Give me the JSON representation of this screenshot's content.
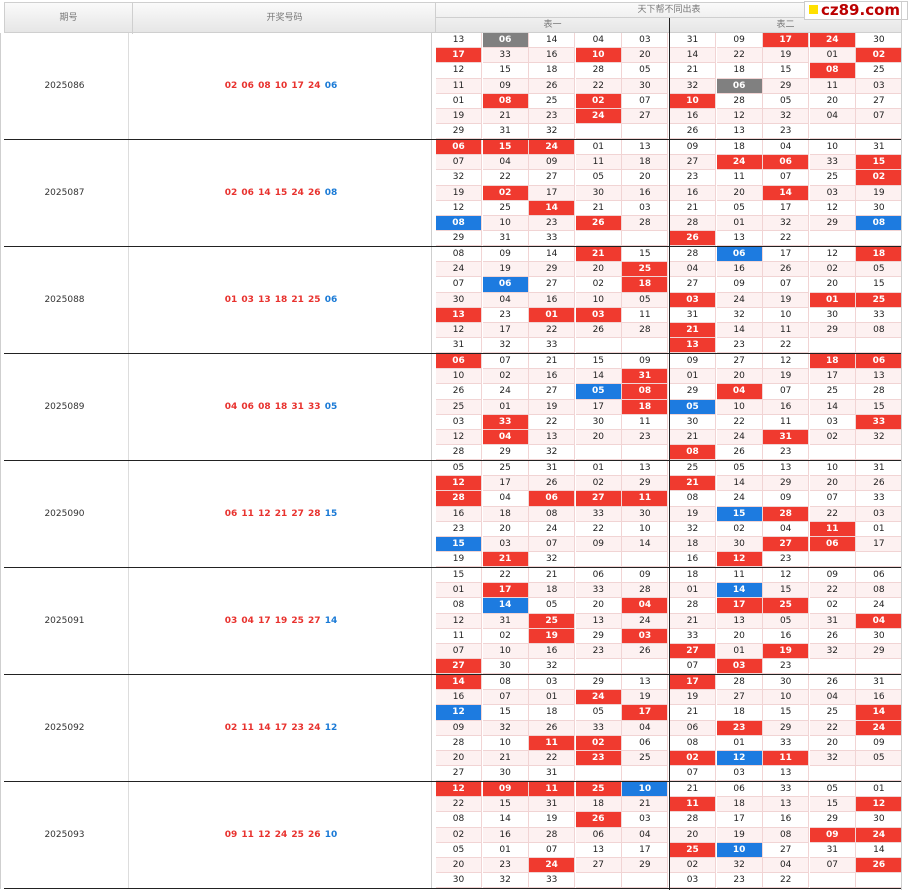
{
  "header": {
    "period_label": "期号",
    "draw_label": "开奖号码",
    "main_title": "天下帮不同出表",
    "table1_label": "表一",
    "table2_label": "表二",
    "logo_text": "cz89.com"
  },
  "colors": {
    "red": "#f03a2f",
    "blue": "#1d7be0",
    "gray": "#808080"
  },
  "periods": [
    {
      "id": "2025086",
      "draw_red": "02 06 08 10 17 24",
      "draw_blue": "06",
      "t1": [
        [
          "13",
          "06g",
          "14",
          "04",
          "03"
        ],
        [
          "17r",
          "33",
          "16",
          "10r",
          "20"
        ],
        [
          "12",
          "15",
          "18",
          "28",
          "05"
        ],
        [
          "11",
          "09",
          "26",
          "22",
          "30"
        ],
        [
          "01",
          "08r",
          "25",
          "02r",
          "07"
        ],
        [
          "19",
          "21",
          "23",
          "24r",
          "27"
        ],
        [
          "29",
          "31",
          "32",
          "",
          ""
        ]
      ],
      "t2": [
        [
          "31",
          "09",
          "17r",
          "24r",
          "30"
        ],
        [
          "14",
          "22",
          "19",
          "01",
          "02r"
        ],
        [
          "21",
          "18",
          "15",
          "08r",
          "25"
        ],
        [
          "32",
          "06g",
          "29",
          "11",
          "03"
        ],
        [
          "10r",
          "28",
          "05",
          "20",
          "27"
        ],
        [
          "16",
          "12",
          "32",
          "04",
          "07"
        ],
        [
          "26",
          "13",
          "23",
          "",
          ""
        ]
      ]
    },
    {
      "id": "2025087",
      "draw_red": "02 06 14 15 24 26",
      "draw_blue": "08",
      "t1": [
        [
          "06r",
          "15r",
          "24r",
          "01",
          "13"
        ],
        [
          "07",
          "04",
          "09",
          "11",
          "18"
        ],
        [
          "32",
          "22",
          "27",
          "05",
          "20"
        ],
        [
          "19",
          "02r",
          "17",
          "30",
          "16"
        ],
        [
          "12",
          "25",
          "14r",
          "21",
          "03"
        ],
        [
          "08b",
          "10",
          "23",
          "26r",
          "28"
        ],
        [
          "29",
          "31",
          "33",
          "",
          ""
        ]
      ],
      "t2": [
        [
          "09",
          "18",
          "04",
          "10",
          "31"
        ],
        [
          "27",
          "24r",
          "06r",
          "33",
          "15r"
        ],
        [
          "23",
          "11",
          "07",
          "25",
          "02r"
        ],
        [
          "16",
          "20",
          "14r",
          "03",
          "19"
        ],
        [
          "21",
          "05",
          "17",
          "12",
          "30"
        ],
        [
          "28",
          "01",
          "32",
          "29",
          "08b"
        ],
        [
          "26r",
          "13",
          "22",
          "",
          ""
        ]
      ]
    },
    {
      "id": "2025088",
      "draw_red": "01 03 13 18 21 25",
      "draw_blue": "06",
      "t1": [
        [
          "08",
          "09",
          "14",
          "21r",
          "15"
        ],
        [
          "24",
          "19",
          "29",
          "20",
          "25r"
        ],
        [
          "07",
          "06b",
          "27",
          "02",
          "18r"
        ],
        [
          "30",
          "04",
          "16",
          "10",
          "05"
        ],
        [
          "13r",
          "23",
          "01r",
          "03r",
          "11"
        ],
        [
          "12",
          "17",
          "22",
          "26",
          "28"
        ],
        [
          "31",
          "32",
          "33",
          "",
          ""
        ]
      ],
      "t2": [
        [
          "28",
          "06b",
          "17",
          "12",
          "18r"
        ],
        [
          "04",
          "16",
          "26",
          "02",
          "05"
        ],
        [
          "27",
          "09",
          "07",
          "20",
          "15"
        ],
        [
          "03r",
          "24",
          "19",
          "01r",
          "25r"
        ],
        [
          "31",
          "32",
          "10",
          "30",
          "33"
        ],
        [
          "21r",
          "14",
          "11",
          "29",
          "08"
        ],
        [
          "13r",
          "23",
          "22",
          "",
          ""
        ]
      ]
    },
    {
      "id": "2025089",
      "draw_red": "04 06 08 18 31 33",
      "draw_blue": "05",
      "t1": [
        [
          "06r",
          "07",
          "21",
          "15",
          "09"
        ],
        [
          "10",
          "02",
          "16",
          "14",
          "31r"
        ],
        [
          "26",
          "24",
          "27",
          "05b",
          "08r"
        ],
        [
          "25",
          "01",
          "19",
          "17",
          "18r"
        ],
        [
          "03",
          "33r",
          "22",
          "30",
          "11"
        ],
        [
          "12",
          "04r",
          "13",
          "20",
          "23"
        ],
        [
          "28",
          "29",
          "32",
          "",
          ""
        ]
      ],
      "t2": [
        [
          "09",
          "27",
          "12",
          "18r",
          "06r"
        ],
        [
          "01",
          "20",
          "19",
          "17",
          "13"
        ],
        [
          "29",
          "04r",
          "07",
          "25",
          "28"
        ],
        [
          "05b",
          "10",
          "16",
          "14",
          "15"
        ],
        [
          "30",
          "22",
          "11",
          "03",
          "33r"
        ],
        [
          "21",
          "24",
          "31r",
          "02",
          "32"
        ],
        [
          "08r",
          "26",
          "23",
          "",
          ""
        ]
      ]
    },
    {
      "id": "2025090",
      "draw_red": "06 11 12 21 27 28",
      "draw_blue": "15",
      "t1": [
        [
          "05",
          "25",
          "31",
          "01",
          "13"
        ],
        [
          "12r",
          "17",
          "26",
          "02",
          "29"
        ],
        [
          "28r",
          "04",
          "06r",
          "27r",
          "11r"
        ],
        [
          "16",
          "18",
          "08",
          "33",
          "30"
        ],
        [
          "23",
          "20",
          "24",
          "22",
          "10"
        ],
        [
          "15b",
          "03",
          "07",
          "09",
          "14"
        ],
        [
          "19",
          "21r",
          "32",
          "",
          ""
        ]
      ],
      "t2": [
        [
          "25",
          "05",
          "13",
          "10",
          "31"
        ],
        [
          "21r",
          "14",
          "29",
          "20",
          "26"
        ],
        [
          "08",
          "24",
          "09",
          "07",
          "33"
        ],
        [
          "19",
          "15b",
          "28r",
          "22",
          "03"
        ],
        [
          "32",
          "02",
          "04",
          "11r",
          "01"
        ],
        [
          "18",
          "30",
          "27r",
          "06r",
          "17"
        ],
        [
          "16",
          "12r",
          "23",
          "",
          ""
        ]
      ]
    },
    {
      "id": "2025091",
      "draw_red": "03 04 17 19 25 27",
      "draw_blue": "14",
      "t1": [
        [
          "15",
          "22",
          "21",
          "06",
          "09"
        ],
        [
          "01",
          "17r",
          "18",
          "33",
          "28"
        ],
        [
          "08",
          "14b",
          "05",
          "20",
          "04r"
        ],
        [
          "12",
          "31",
          "25r",
          "13",
          "24"
        ],
        [
          "11",
          "02",
          "19r",
          "29",
          "03r"
        ],
        [
          "07",
          "10",
          "16",
          "23",
          "26"
        ],
        [
          "27r",
          "30",
          "32",
          "",
          ""
        ]
      ],
      "t2": [
        [
          "18",
          "11",
          "12",
          "09",
          "06"
        ],
        [
          "01",
          "14b",
          "15",
          "22",
          "08"
        ],
        [
          "28",
          "17r",
          "25r",
          "02",
          "24"
        ],
        [
          "21",
          "13",
          "05",
          "31",
          "04r"
        ],
        [
          "33",
          "20",
          "16",
          "26",
          "30"
        ],
        [
          "27r",
          "01",
          "19r",
          "32",
          "29"
        ],
        [
          "07",
          "03r",
          "23",
          "",
          ""
        ]
      ]
    },
    {
      "id": "2025092",
      "draw_red": "02 11 14 17 23 24",
      "draw_blue": "12",
      "t1": [
        [
          "14r",
          "08",
          "03",
          "29",
          "13"
        ],
        [
          "16",
          "07",
          "01",
          "24r",
          "19"
        ],
        [
          "12b",
          "15",
          "18",
          "05",
          "17r"
        ],
        [
          "09",
          "32",
          "26",
          "33",
          "04"
        ],
        [
          "28",
          "10",
          "11r",
          "02r",
          "06"
        ],
        [
          "20",
          "21",
          "22",
          "23r",
          "25"
        ],
        [
          "27",
          "30",
          "31",
          "",
          ""
        ]
      ],
      "t2": [
        [
          "17r",
          "28",
          "30",
          "26",
          "31"
        ],
        [
          "19",
          "27",
          "10",
          "04",
          "16"
        ],
        [
          "21",
          "18",
          "15",
          "25",
          "14r"
        ],
        [
          "06",
          "23r",
          "29",
          "22",
          "24r"
        ],
        [
          "08",
          "01",
          "33",
          "20",
          "09"
        ],
        [
          "02r",
          "12b",
          "11r",
          "32",
          "05"
        ],
        [
          "07",
          "03",
          "13",
          "",
          ""
        ]
      ]
    },
    {
      "id": "2025093",
      "draw_red": "09 11 12 24 25 26",
      "draw_blue": "10",
      "t1": [
        [
          "12r",
          "09r",
          "11r",
          "25r",
          "10b"
        ],
        [
          "22",
          "15",
          "31",
          "18",
          "21"
        ],
        [
          "08",
          "14",
          "19",
          "26r",
          "03"
        ],
        [
          "02",
          "16",
          "28",
          "06",
          "04"
        ],
        [
          "05",
          "01",
          "07",
          "13",
          "17"
        ],
        [
          "20",
          "23",
          "24r",
          "27",
          "29"
        ],
        [
          "30",
          "32",
          "33",
          "",
          ""
        ]
      ],
      "t2": [
        [
          "21",
          "06",
          "33",
          "05",
          "01"
        ],
        [
          "11r",
          "18",
          "13",
          "15",
          "12r"
        ],
        [
          "28",
          "17",
          "16",
          "29",
          "30"
        ],
        [
          "20",
          "19",
          "08",
          "09r",
          "24r"
        ],
        [
          "25r",
          "10b",
          "27",
          "31",
          "14"
        ],
        [
          "02",
          "32",
          "04",
          "07",
          "26r"
        ],
        [
          "03",
          "23",
          "22",
          "",
          ""
        ]
      ]
    }
  ]
}
